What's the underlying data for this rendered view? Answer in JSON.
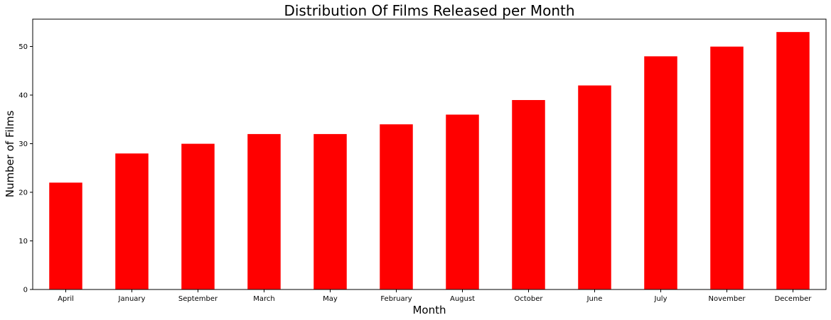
{
  "chart_data": {
    "type": "bar",
    "title": "Distribution Of Films Released per Month",
    "xlabel": "Month",
    "ylabel": "Number of Films",
    "categories": [
      "April",
      "January",
      "September",
      "March",
      "May",
      "February",
      "August",
      "October",
      "June",
      "July",
      "November",
      "December"
    ],
    "values": [
      22,
      28,
      30,
      32,
      32,
      34,
      36,
      39,
      42,
      48,
      50,
      53
    ],
    "ylim": [
      0,
      55.65
    ],
    "yticks": [
      0,
      10,
      20,
      30,
      40,
      50
    ],
    "grid": false,
    "legend": "none",
    "bar_color": "#ff0000"
  }
}
